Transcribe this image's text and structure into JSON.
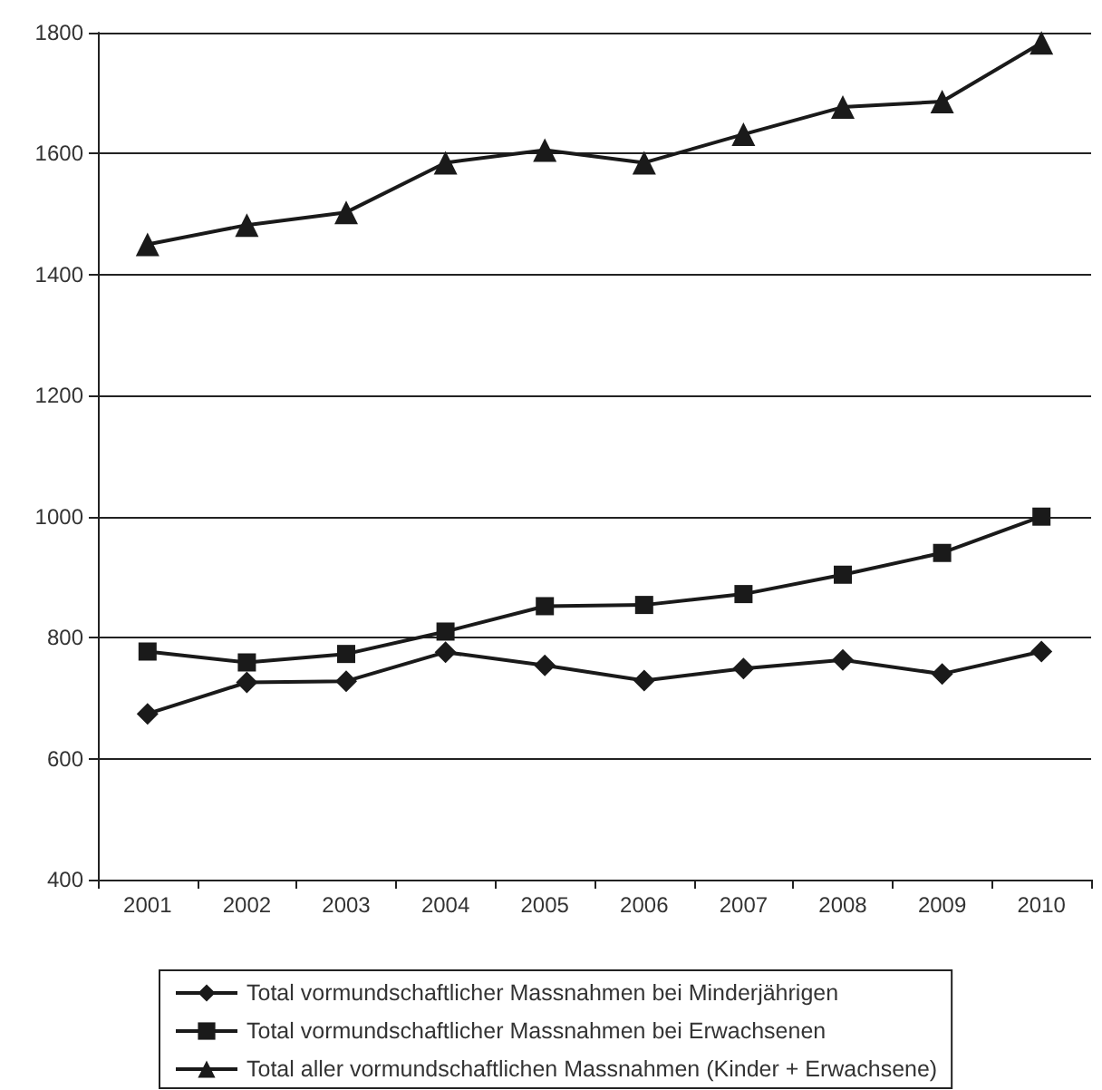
{
  "chart_data": {
    "type": "line",
    "categories": [
      "2001",
      "2002",
      "2003",
      "2004",
      "2005",
      "2006",
      "2007",
      "2008",
      "2009",
      "2010"
    ],
    "series": [
      {
        "name": "Total vormundschaftlicher Massnahmen bei Minderjährigen",
        "color": "#1a1a1a",
        "marker": "diamond",
        "values": [
          674,
          726,
          728,
          776,
          754,
          729,
          749,
          763,
          740,
          777
        ]
      },
      {
        "name": "Total vormundschaftlicher Massnahmen bei Erwachsenen",
        "color": "#1a1a1a",
        "marker": "square",
        "values": [
          777,
          759,
          773,
          810,
          852,
          854,
          872,
          904,
          940,
          1000
        ]
      },
      {
        "name": "Total aller vormundschaftlichen Massnahmen (Kinder + Erwachsene)",
        "color": "#1a1a1a",
        "marker": "triangle",
        "values": [
          1450,
          1482,
          1503,
          1585,
          1606,
          1585,
          1632,
          1677,
          1686,
          1783
        ]
      }
    ],
    "ylim": [
      400,
      1800
    ],
    "yticks": [
      400,
      600,
      800,
      1000,
      1200,
      1400,
      1600,
      1800
    ],
    "grid": "y",
    "legend": "bottom",
    "line_style": "solid"
  }
}
